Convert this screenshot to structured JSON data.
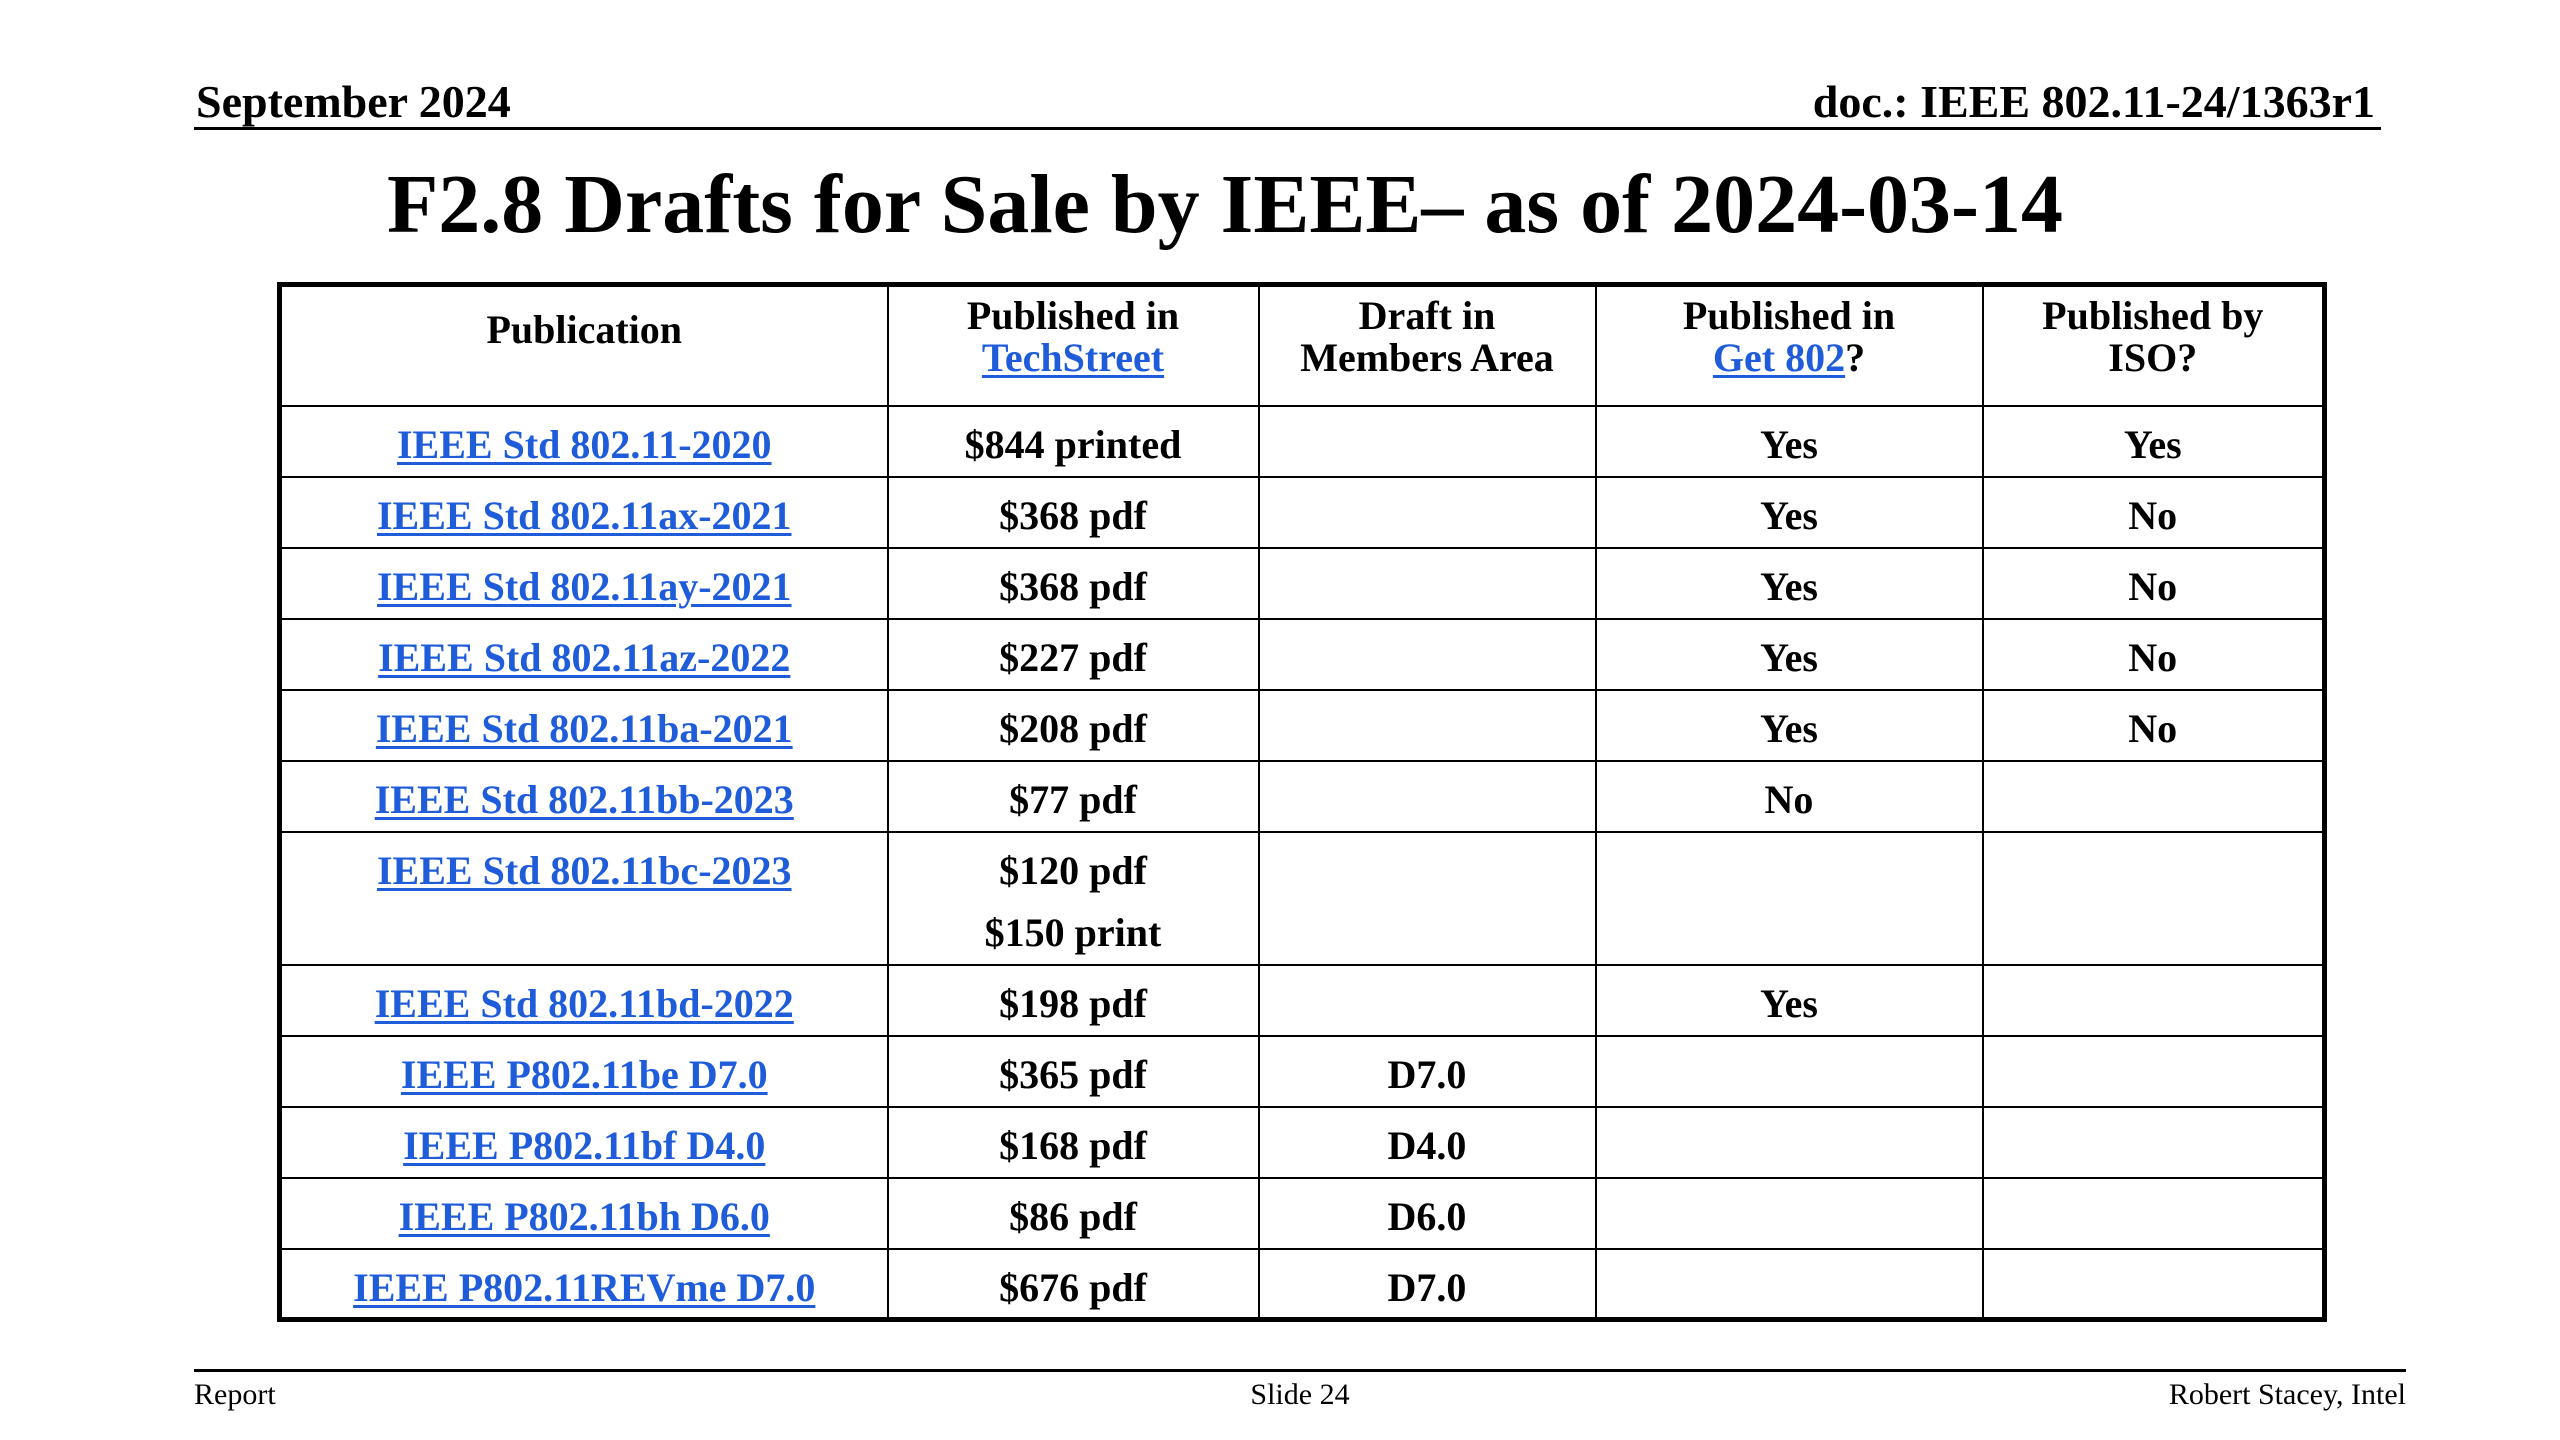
{
  "header": {
    "date": "September 2024",
    "doc": "doc.: IEEE 802.11-24/1363r1"
  },
  "title": "F2.8 Drafts for Sale by IEEE– as of 2024-03-14",
  "table": {
    "headers": {
      "publication": "Publication",
      "techstreet_prefix": "Published in",
      "techstreet_link": "TechStreet",
      "members_line1": "Draft in",
      "members_line2": "Members Area",
      "get802_prefix": "Published in",
      "get802_link": "Get 802",
      "get802_suffix": "?",
      "iso_line1": "Published by",
      "iso_line2": "ISO?"
    },
    "rows": [
      {
        "publication": "IEEE Std 802.11-2020",
        "price": "$844 printed",
        "price2": "",
        "members": "",
        "get802": "Yes",
        "iso": "Yes"
      },
      {
        "publication": "IEEE Std 802.11ax-2021",
        "price": "$368 pdf",
        "price2": "",
        "members": "",
        "get802": "Yes",
        "iso": "No"
      },
      {
        "publication": "IEEE Std 802.11ay-2021",
        "price": "$368 pdf",
        "price2": "",
        "members": "",
        "get802": "Yes",
        "iso": "No"
      },
      {
        "publication": "IEEE Std 802.11az-2022",
        "price": "$227 pdf",
        "price2": "",
        "members": "",
        "get802": "Yes",
        "iso": "No"
      },
      {
        "publication": "IEEE Std 802.11ba-2021",
        "price": "$208 pdf",
        "price2": "",
        "members": "",
        "get802": "Yes",
        "iso": "No"
      },
      {
        "publication": "IEEE Std 802.11bb-2023",
        "price": "$77 pdf",
        "price2": "",
        "members": "",
        "get802": "No",
        "iso": ""
      },
      {
        "publication": "IEEE Std 802.11bc-2023",
        "price": "$120 pdf",
        "price2": "$150 print",
        "members": "",
        "get802": "",
        "iso": ""
      },
      {
        "publication": "IEEE Std 802.11bd-2022",
        "price": "$198 pdf",
        "price2": "",
        "members": "",
        "get802": "Yes",
        "iso": ""
      },
      {
        "publication": "IEEE P802.11be D7.0",
        "price": "$365 pdf",
        "price2": "",
        "members": "D7.0",
        "get802": "",
        "iso": ""
      },
      {
        "publication": "IEEE P802.11bf D4.0",
        "price": "$168 pdf",
        "price2": "",
        "members": "D4.0",
        "get802": "",
        "iso": ""
      },
      {
        "publication": "IEEE P802.11bh D6.0",
        "price": "$86 pdf",
        "price2": "",
        "members": "D6.0",
        "get802": "",
        "iso": ""
      },
      {
        "publication": "IEEE P802.11REVme D7.0",
        "price": "$676 pdf",
        "price2": "",
        "members": "D7.0",
        "get802": "",
        "iso": ""
      }
    ]
  },
  "footer": {
    "left": "Report",
    "center": "Slide 24",
    "right": "Robert Stacey, Intel"
  },
  "colors": {
    "link": "#1f5cd9",
    "text": "#000000",
    "background": "#ffffff"
  }
}
